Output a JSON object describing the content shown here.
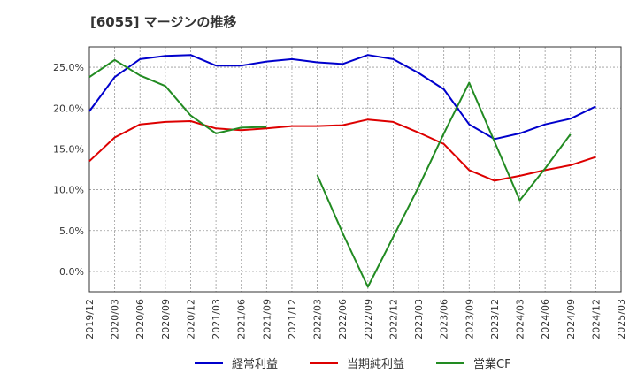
{
  "chart_data": {
    "type": "line",
    "title": "[6055]  マージンの推移",
    "x": [
      "2019/12",
      "2020/03",
      "2020/06",
      "2020/09",
      "2020/12",
      "2021/03",
      "2021/06",
      "2021/09",
      "2021/12",
      "2022/03",
      "2022/06",
      "2022/09",
      "2022/12",
      "2023/03",
      "2023/06",
      "2023/09",
      "2023/12",
      "2024/03",
      "2024/06",
      "2024/09",
      "2024/12",
      "2025/03"
    ],
    "ylim": [
      -2.5,
      27.5
    ],
    "yticks": [
      0,
      5,
      10,
      15,
      20,
      25
    ],
    "ytick_labels": [
      "0.0%",
      "5.0%",
      "10.0%",
      "15.0%",
      "20.0%",
      "25.0%"
    ],
    "grid": true,
    "legend_position": "bottom",
    "series": [
      {
        "name": "経常利益",
        "color": "#0000cc",
        "values": [
          19.6,
          23.8,
          26.0,
          26.4,
          26.5,
          25.2,
          25.2,
          25.7,
          26.0,
          25.6,
          25.4,
          26.5,
          26.0,
          24.3,
          22.3,
          18.0,
          16.2,
          16.9,
          18.0,
          18.7,
          20.2,
          null
        ]
      },
      {
        "name": "当期純利益",
        "color": "#dd0000",
        "values": [
          13.5,
          16.4,
          18.0,
          18.3,
          18.4,
          17.5,
          17.3,
          17.5,
          17.8,
          17.8,
          17.9,
          18.6,
          18.3,
          17.0,
          15.6,
          12.4,
          11.1,
          11.7,
          12.4,
          13.0,
          14.0,
          null
        ]
      },
      {
        "name": "営業CF",
        "color": "#228b22",
        "values": [
          23.8,
          25.9,
          24.0,
          22.7,
          19.1,
          16.9,
          17.6,
          17.7,
          null,
          11.8,
          4.7,
          -1.9,
          4.2,
          10.3,
          16.9,
          23.1,
          15.9,
          8.7,
          12.6,
          16.8,
          null,
          null
        ]
      }
    ]
  }
}
